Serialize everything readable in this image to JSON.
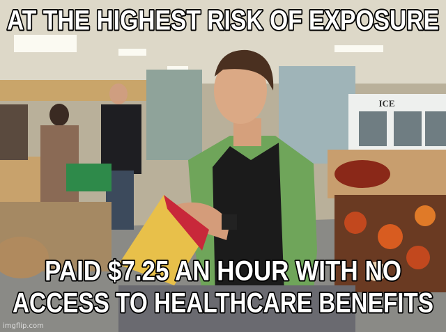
{
  "captions": {
    "top": "AT THE HIGHEST RISK OF EXPOSURE",
    "bottom": [
      "PAID $7.25 AN HOUR WITH NO",
      "ACCESS TO HEALTHCARE BENEFITS"
    ]
  },
  "scene_text": {
    "sign": "ICE"
  },
  "watermark": "imgflip.com"
}
